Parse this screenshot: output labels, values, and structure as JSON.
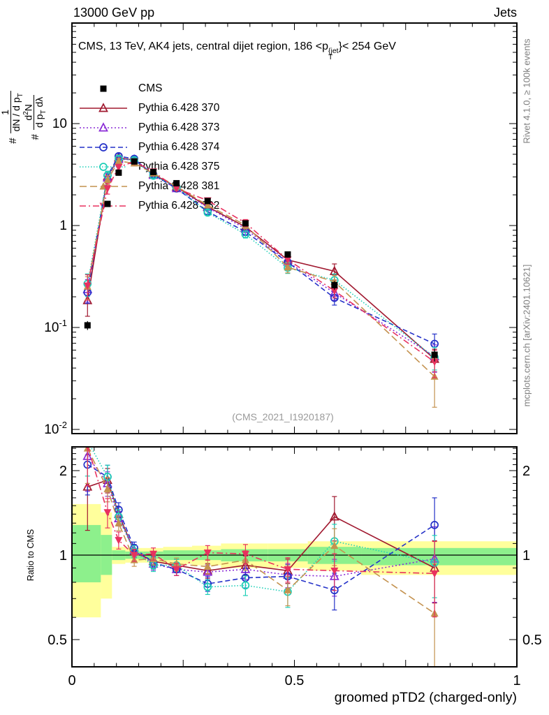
{
  "header": {
    "left": "13000 GeV pp",
    "right": "Jets"
  },
  "title": {
    "pre": "CMS, 13 TeV, AK4 jets, central dijet region, 186 <p",
    "sup": "{jet",
    "sub": "T",
    "post": "}< 254 GeV"
  },
  "watermark": "(CMS_2021_I1920187)",
  "side_text_top": "Rivet 4.1.0, ≥ 100k events",
  "side_text_bottom": "mcplots.cern.ch [arXiv:2401.10621]",
  "ratio_ylabel": "Ratio to CMS",
  "xlabel": "groomed pTD2 (charged-only)",
  "ylabel_top": {
    "hash1": "#",
    "f1_num": "1",
    "f1_den_a": "dN / d p",
    "f1_den_sub": "T",
    "hash2": "#",
    "f2_num_a": "d",
    "f2_num_sup": "2",
    "f2_num_b": "N",
    "f2_den_a": "d p",
    "f2_den_sub": "T",
    "f2_den_b": " dλ"
  },
  "axes": {
    "top_y": [
      {
        "base": "10",
        "exp": "",
        "v": 10
      },
      {
        "base": "1",
        "exp": "",
        "v": 1
      },
      {
        "base": "10",
        "exp": "-1",
        "v": 0.1
      },
      {
        "base": "10",
        "exp": "-2",
        "v": 0.01
      }
    ],
    "ratio_y": [
      {
        "base": "2",
        "v": 2
      },
      {
        "base": "1",
        "v": 1
      },
      {
        "base": "0.5",
        "v": 0.5
      }
    ],
    "x": [
      {
        "base": "0",
        "v": 0
      },
      {
        "base": "0.5",
        "v": 0.5
      },
      {
        "base": "1",
        "v": 1
      }
    ]
  },
  "chart_data": {
    "type": "line",
    "title": "CMS, 13 TeV, AK4 jets, central dijet region, 186 < pT^jet < 254 GeV",
    "xlabel": "groomed pTD2 (charged-only)",
    "ylabel": "# 1/(dN/dpT) d2N/(dpT dlambda)",
    "ratio_label": "Ratio to CMS",
    "xlim": [
      0,
      1
    ],
    "ylim_top": [
      0.009,
      97
    ],
    "ylim_ratio": [
      0.4,
      2.43
    ],
    "x": [
      0.035,
      0.08,
      0.105,
      0.14,
      0.183,
      0.235,
      0.305,
      0.39,
      0.485,
      0.59,
      0.815
    ],
    "bin_edges": [
      0.0,
      0.065,
      0.09,
      0.12,
      0.16,
      0.205,
      0.27,
      0.335,
      0.44,
      0.53,
      0.65,
      1.0
    ],
    "cms": {
      "id": "cms",
      "label": "CMS",
      "color": "#000000",
      "marker": "square-filled",
      "line": null,
      "values": [
        0.105,
        1.63,
        3.3,
        4.25,
        3.35,
        2.6,
        1.74,
        1.05,
        0.52,
        0.26,
        0.054
      ],
      "err_frac": [
        0.1,
        0.05,
        0.04,
        0.03,
        0.03,
        0.03,
        0.04,
        0.05,
        0.07,
        0.1,
        0.14
      ]
    },
    "series": [
      {
        "id": "p370",
        "label": "Pythia 6.428 370",
        "color": "#a0182f",
        "line": "solid",
        "marker": "triangle-open",
        "values": [
          0.184,
          3.02,
          4.62,
          4.38,
          3.18,
          2.39,
          1.53,
          0.97,
          0.46,
          0.356,
          0.049
        ],
        "ratio": [
          1.75,
          1.85,
          1.4,
          1.03,
          0.95,
          0.92,
          0.88,
          0.92,
          0.88,
          1.37,
          0.9
        ],
        "err_frac": [
          0.3,
          0.1,
          0.06,
          0.05,
          0.05,
          0.05,
          0.06,
          0.08,
          0.1,
          0.18,
          0.25
        ]
      },
      {
        "id": "p373",
        "label": "Pythia 6.428 373",
        "color": "#8a2bd6",
        "line": "dotted",
        "marker": "triangle-open",
        "values": [
          0.236,
          2.93,
          4.46,
          4.42,
          3.12,
          2.31,
          1.51,
          0.93,
          0.44,
          0.218,
          0.052
        ],
        "ratio": [
          2.25,
          1.8,
          1.35,
          1.04,
          0.93,
          0.89,
          0.87,
          0.89,
          0.85,
          0.84,
          0.97
        ],
        "err_frac": [
          0.25,
          0.1,
          0.06,
          0.05,
          0.05,
          0.05,
          0.06,
          0.08,
          0.1,
          0.15,
          0.3
        ]
      },
      {
        "id": "p374",
        "label": "Pythia 6.428 374",
        "color": "#2431c8",
        "line": "dashed",
        "marker": "circle-open",
        "values": [
          0.221,
          3.1,
          4.79,
          4.51,
          3.15,
          2.31,
          1.37,
          0.87,
          0.437,
          0.195,
          0.069
        ],
        "ratio": [
          2.1,
          1.9,
          1.45,
          1.06,
          0.94,
          0.89,
          0.79,
          0.83,
          0.84,
          0.75,
          1.28
        ],
        "err_frac": [
          0.22,
          0.1,
          0.06,
          0.05,
          0.05,
          0.05,
          0.06,
          0.08,
          0.1,
          0.15,
          0.25
        ]
      },
      {
        "id": "p375",
        "label": "Pythia 6.428 375",
        "color": "#1ecfb7",
        "line": "dot-fine",
        "marker": "circle-open",
        "values": [
          0.268,
          3.1,
          4.52,
          4.38,
          3.08,
          2.39,
          1.34,
          0.82,
          0.385,
          0.291,
          0.051
        ],
        "ratio": [
          2.55,
          1.9,
          1.37,
          1.03,
          0.92,
          0.92,
          0.77,
          0.78,
          0.74,
          1.12,
          0.94
        ],
        "err_frac": [
          0.25,
          0.1,
          0.06,
          0.05,
          0.05,
          0.05,
          0.06,
          0.08,
          0.12,
          0.15,
          0.25
        ]
      },
      {
        "id": "p381",
        "label": "Pythia 6.428 381",
        "color": "#c4924f",
        "line": "long-dash",
        "marker": "triangle-filled",
        "values": [
          0.252,
          2.8,
          4.29,
          4.08,
          3.25,
          2.42,
          1.58,
          1.01,
          0.39,
          0.281,
          0.033
        ],
        "ratio": [
          2.4,
          1.72,
          1.3,
          0.96,
          0.97,
          0.93,
          0.91,
          0.96,
          0.75,
          1.08,
          0.62
        ],
        "err_frac": [
          0.25,
          0.1,
          0.06,
          0.05,
          0.05,
          0.05,
          0.06,
          0.08,
          0.12,
          0.15,
          0.5
        ]
      },
      {
        "id": "p382",
        "label": "Pythia 6.428 382",
        "color": "#e8315f",
        "line": "dash-dot",
        "marker": "triangle-down-filled",
        "values": [
          0.257,
          2.31,
          3.73,
          4.25,
          3.38,
          2.31,
          1.76,
          1.06,
          0.463,
          0.229,
          0.046
        ],
        "ratio": [
          2.45,
          1.42,
          1.13,
          1.0,
          1.01,
          0.89,
          1.02,
          1.01,
          0.89,
          0.88,
          0.86
        ],
        "err_frac": [
          0.28,
          0.12,
          0.07,
          0.05,
          0.05,
          0.05,
          0.06,
          0.08,
          0.1,
          0.15,
          0.3
        ]
      }
    ],
    "ratio_bands": {
      "yellow": "#ffff9c",
      "green": "#8df08c",
      "bins": [
        {
          "x0": 0.0,
          "x1": 0.065,
          "ylo": 0.6,
          "yhi": 1.52,
          "glo": 0.8,
          "ghi": 1.28
        },
        {
          "x0": 0.065,
          "x1": 0.09,
          "ylo": 0.7,
          "yhi": 1.42,
          "glo": 0.85,
          "ghi": 1.18
        },
        {
          "x0": 0.09,
          "x1": 0.12,
          "ylo": 0.93,
          "yhi": 1.07,
          "glo": 0.96,
          "ghi": 1.04
        },
        {
          "x0": 0.12,
          "x1": 0.16,
          "ylo": 0.94,
          "yhi": 1.06,
          "glo": 0.97,
          "ghi": 1.03
        },
        {
          "x0": 0.16,
          "x1": 0.205,
          "ylo": 0.94,
          "yhi": 1.06,
          "glo": 0.97,
          "ghi": 1.03
        },
        {
          "x0": 0.205,
          "x1": 0.27,
          "ylo": 0.93,
          "yhi": 1.07,
          "glo": 0.96,
          "ghi": 1.04
        },
        {
          "x0": 0.27,
          "x1": 0.335,
          "ylo": 0.92,
          "yhi": 1.08,
          "glo": 0.96,
          "ghi": 1.04
        },
        {
          "x0": 0.335,
          "x1": 0.44,
          "ylo": 0.9,
          "yhi": 1.1,
          "glo": 0.95,
          "ghi": 1.05
        },
        {
          "x0": 0.44,
          "x1": 0.53,
          "ylo": 0.9,
          "yhi": 1.1,
          "glo": 0.95,
          "ghi": 1.05
        },
        {
          "x0": 0.53,
          "x1": 0.65,
          "ylo": 0.88,
          "yhi": 1.12,
          "glo": 0.93,
          "ghi": 1.07
        },
        {
          "x0": 0.65,
          "x1": 1.0,
          "ylo": 0.85,
          "yhi": 1.12,
          "glo": 0.92,
          "ghi": 1.06
        }
      ]
    }
  }
}
